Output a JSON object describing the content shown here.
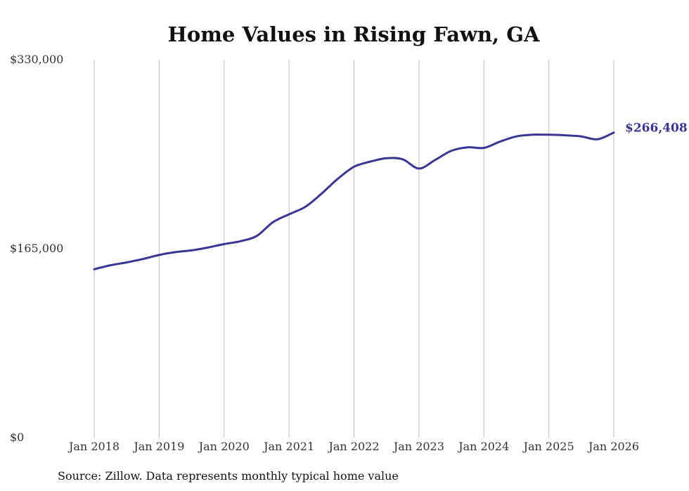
{
  "chart_data": {
    "type": "line",
    "title": "Home Values in Rising Fawn, GA",
    "xlabel": "",
    "ylabel": "",
    "ylim": [
      0,
      330000
    ],
    "y_ticks": [
      {
        "value": 0,
        "label": "$0"
      },
      {
        "value": 165000,
        "label": "$165,000"
      },
      {
        "value": 330000,
        "label": "$330,000"
      }
    ],
    "x_ticks": [
      {
        "value": 2018,
        "label": "Jan 2018"
      },
      {
        "value": 2019,
        "label": "Jan 2019"
      },
      {
        "value": 2020,
        "label": "Jan 2020"
      },
      {
        "value": 2021,
        "label": "Jan 2021"
      },
      {
        "value": 2022,
        "label": "Jan 2022"
      },
      {
        "value": 2023,
        "label": "Jan 2023"
      },
      {
        "value": 2024,
        "label": "Jan 2024"
      },
      {
        "value": 2025,
        "label": "Jan 2025"
      },
      {
        "value": 2026,
        "label": "Jan 2026"
      }
    ],
    "xlim": [
      2018,
      2026
    ],
    "grid": "vertical",
    "series": [
      {
        "name": "Typical home value",
        "color": "#3a3593",
        "x": [
          2018.0,
          2018.25,
          2018.5,
          2018.75,
          2019.0,
          2019.25,
          2019.5,
          2019.75,
          2020.0,
          2020.25,
          2020.5,
          2020.75,
          2021.0,
          2021.25,
          2021.5,
          2021.75,
          2022.0,
          2022.25,
          2022.5,
          2022.75,
          2023.0,
          2023.25,
          2023.5,
          2023.75,
          2024.0,
          2024.25,
          2024.5,
          2024.75,
          2025.0,
          2025.25,
          2025.5,
          2025.75,
          2026.0
        ],
        "values": [
          147000,
          150500,
          153000,
          156000,
          159500,
          162000,
          163500,
          166000,
          169000,
          171500,
          176000,
          188000,
          195000,
          201500,
          213000,
          226000,
          236500,
          241000,
          244000,
          243000,
          235000,
          242500,
          250500,
          253500,
          253000,
          258500,
          263000,
          264500,
          264500,
          264000,
          263000,
          260500,
          266408
        ]
      }
    ],
    "end_label": "$266,408",
    "source": "Source: Zillow. Data represents monthly typical home value"
  }
}
